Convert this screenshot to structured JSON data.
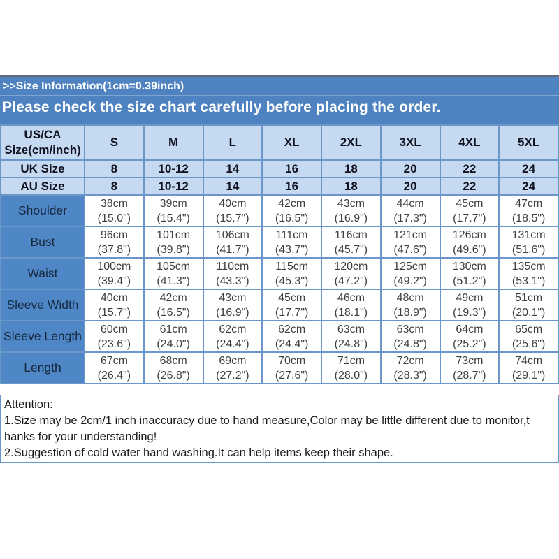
{
  "banner": {
    "size_info": ">>Size Information(1cm=0.39inch)",
    "notice": "Please check the size chart carefully before placing the order."
  },
  "table": {
    "corner_label_lines": [
      "US/CA",
      "Size(cm/inch)"
    ],
    "sizes": [
      "S",
      "M",
      "L",
      "XL",
      "2XL",
      "3XL",
      "4XL",
      "5XL"
    ],
    "size_rows": [
      {
        "label": "UK Size",
        "values": [
          "8",
          "10-12",
          "14",
          "16",
          "18",
          "20",
          "22",
          "24"
        ]
      },
      {
        "label": "AU Size",
        "values": [
          "8",
          "10-12",
          "14",
          "16",
          "18",
          "20",
          "22",
          "24"
        ]
      }
    ],
    "measure_rows": [
      {
        "label": "Shoulder",
        "values": [
          [
            "38cm",
            "(15.0\")"
          ],
          [
            "39cm",
            "(15.4\")"
          ],
          [
            "40cm",
            "(15.7\")"
          ],
          [
            "42cm",
            "(16.5\")"
          ],
          [
            "43cm",
            "(16.9\")"
          ],
          [
            "44cm",
            "(17.3\")"
          ],
          [
            "45cm",
            "(17.7\")"
          ],
          [
            "47cm",
            "(18.5\")"
          ]
        ]
      },
      {
        "label": "Bust",
        "values": [
          [
            "96cm",
            "(37.8\")"
          ],
          [
            "101cm",
            "(39.8\")"
          ],
          [
            "106cm",
            "(41.7\")"
          ],
          [
            "111cm",
            "(43.7\")"
          ],
          [
            "116cm",
            "(45.7\")"
          ],
          [
            "121cm",
            "(47.6\")"
          ],
          [
            "126cm",
            "(49.6\")"
          ],
          [
            "131cm",
            "(51.6\")"
          ]
        ]
      },
      {
        "label": "Waist",
        "values": [
          [
            "100cm",
            "(39.4\")"
          ],
          [
            "105cm",
            "(41.3\")"
          ],
          [
            "110cm",
            "(43.3\")"
          ],
          [
            "115cm",
            "(45.3\")"
          ],
          [
            "120cm",
            "(47.2\")"
          ],
          [
            "125cm",
            "(49.2\")"
          ],
          [
            "130cm",
            "(51.2\")"
          ],
          [
            "135cm",
            "(53.1\")"
          ]
        ]
      },
      {
        "label": "Sleeve Width",
        "values": [
          [
            "40cm",
            "(15.7\")"
          ],
          [
            "42cm",
            "(16.5\")"
          ],
          [
            "43cm",
            "(16.9\")"
          ],
          [
            "45cm",
            "(17.7\")"
          ],
          [
            "46cm",
            "(18.1\")"
          ],
          [
            "48cm",
            "(18.9\")"
          ],
          [
            "49cm",
            "(19.3\")"
          ],
          [
            "51cm",
            "(20.1\")"
          ]
        ]
      },
      {
        "label": "Sleeve Length",
        "values": [
          [
            "60cm",
            "(23.6\")"
          ],
          [
            "61cm",
            "(24.0\")"
          ],
          [
            "62cm",
            "(24.4\")"
          ],
          [
            "62cm",
            "(24.4\")"
          ],
          [
            "63cm",
            "(24.8\")"
          ],
          [
            "63cm",
            "(24.8\")"
          ],
          [
            "64cm",
            "(25.2\")"
          ],
          [
            "65cm",
            "(25.6\")"
          ]
        ]
      },
      {
        "label": "Length",
        "values": [
          [
            "67cm",
            "(26.4\")"
          ],
          [
            "68cm",
            "(26.8\")"
          ],
          [
            "69cm",
            "(27.2\")"
          ],
          [
            "70cm",
            "(27.6\")"
          ],
          [
            "71cm",
            "(28.0\")"
          ],
          [
            "72cm",
            "(28.3\")"
          ],
          [
            "73cm",
            "(28.7\")"
          ],
          [
            "74cm",
            "(29.1\")"
          ]
        ]
      }
    ]
  },
  "attention": {
    "lines": [
      "Attention:",
      "1.Size may be 2cm/1 inch inaccuracy due to hand measure,Color may be little different due to monitor,t",
      "hanks for your understanding!",
      "2.Suggestion of cold water hand washing.It can help items keep their shape."
    ]
  },
  "colors": {
    "banner_bg": "#4e82c0",
    "header_bg": "#c5d9f1",
    "row_label_bg": "#4e86c6",
    "grid_border": "#6b96c9",
    "header_text": "#10131f",
    "row_label_text": "#16293f",
    "cell_text": "#3f3f3f"
  }
}
